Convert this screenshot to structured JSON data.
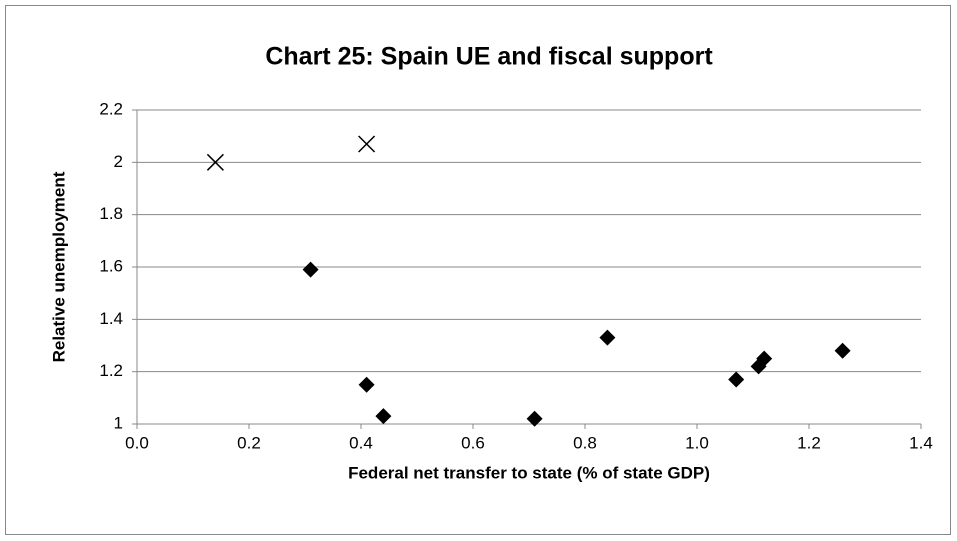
{
  "chart_data": {
    "type": "scatter",
    "title": "Chart 25: Spain UE and fiscal support",
    "x_label": "Federal net transfer to state (% of state GDP)",
    "y_label": "Relative unemployment",
    "series": [
      {
        "marker": "diamond",
        "color": "#000000",
        "x": [
          0.31,
          0.41,
          0.44,
          0.71,
          0.84,
          1.07,
          1.11,
          1.12,
          1.26
        ],
        "values": [
          1.59,
          1.15,
          1.03,
          1.02,
          1.33,
          1.17,
          1.22,
          1.25,
          1.28
        ]
      },
      {
        "marker": "cross",
        "color": "#000000",
        "x": [
          0.14,
          0.41
        ],
        "values": [
          2.0,
          2.07
        ]
      }
    ],
    "xlim": [
      0,
      1.4
    ],
    "xticks": [
      {
        "value": 0,
        "label": "0.0"
      },
      0.2,
      0.4,
      0.6,
      0.8,
      {
        "value": 1,
        "label": "1.0"
      },
      1.2,
      1.4
    ],
    "ylim": [
      1,
      2.2
    ],
    "yticks": [
      1,
      1.2,
      1.4,
      1.6,
      1.8,
      2,
      2.2
    ],
    "grid": true
  }
}
